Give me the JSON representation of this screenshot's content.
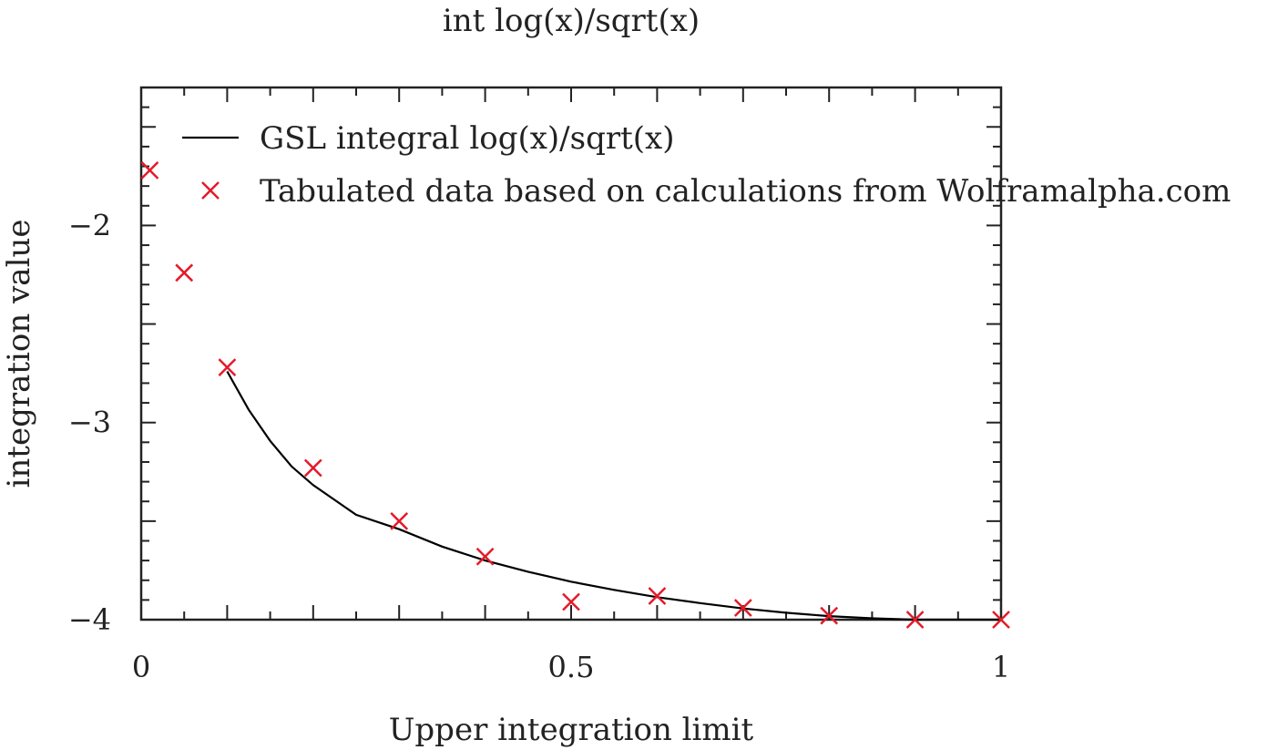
{
  "chart_data": {
    "type": "line",
    "title": "int log(x)/sqrt(x)",
    "xlabel": "Upper integration limit",
    "ylabel": "integration value",
    "xlim": [
      0,
      1
    ],
    "ylim": [
      -4,
      -1.7
    ],
    "x_ticks": [
      {
        "value": 0,
        "label": "0"
      },
      {
        "value": 0.5,
        "label": "0.5"
      },
      {
        "value": 1,
        "label": "1"
      }
    ],
    "y_ticks": [
      {
        "value": -2,
        "label": "−2"
      },
      {
        "value": -3,
        "label": "−3"
      },
      {
        "value": -4,
        "label": "−4"
      }
    ],
    "grid": false,
    "legend_position": "top-left",
    "series": [
      {
        "name": "GSL integral log(x)/sqrt(x)",
        "kind": "line",
        "color": "#000000",
        "x": [
          0.1,
          0.125,
          0.15,
          0.175,
          0.2,
          0.25,
          0.3,
          0.35,
          0.4,
          0.45,
          0.5,
          0.55,
          0.6,
          0.65,
          0.7,
          0.75,
          0.8,
          0.85,
          0.9,
          0.95,
          1.0
        ],
        "y": [
          -2.74,
          -2.935,
          -3.093,
          -3.223,
          -3.317,
          -3.468,
          -3.541,
          -3.629,
          -3.7,
          -3.757,
          -3.807,
          -3.849,
          -3.886,
          -3.916,
          -3.943,
          -3.965,
          -3.982,
          -3.993,
          -4.0,
          -4.0,
          -4.0
        ]
      },
      {
        "name": "Tabulated data based on calculations from Wolframalpha.com",
        "kind": "scatter",
        "marker": "x",
        "color": "#e41a2a",
        "x": [
          0.01,
          0.05,
          0.1,
          0.2,
          0.3,
          0.4,
          0.5,
          0.6,
          0.7,
          0.8,
          0.9,
          1.0
        ],
        "y": [
          -1.72,
          -2.24,
          -2.72,
          -3.23,
          -3.5,
          -3.68,
          -3.91,
          -3.88,
          -3.94,
          -3.98,
          -4.0,
          -4.0
        ]
      }
    ]
  }
}
